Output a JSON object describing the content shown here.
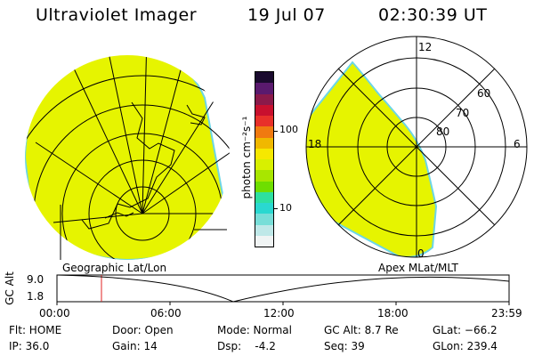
{
  "header": {
    "instrument": "Ultraviolet Imager",
    "date": "19 Jul 07",
    "time": "02:30:39 UT"
  },
  "colorbar": {
    "unit": "photon cm⁻²s⁻¹",
    "tick_100": "100",
    "tick_10": "10",
    "colors": [
      "#1a0a2e",
      "#5a1a6e",
      "#8a1a4a",
      "#c8102e",
      "#e8302a",
      "#f07a10",
      "#f0b800",
      "#f6e800",
      "#d8f000",
      "#a8e600",
      "#6ede00",
      "#2ee0a0",
      "#2ad8d0",
      "#78ded8",
      "#bfe8e8",
      "#f0f4f4"
    ]
  },
  "left_view": {
    "projection_label": "Geographic Lat/Lon"
  },
  "right_view": {
    "projection_label": "Apex  MLat/MLT",
    "mlt_labels": {
      "top": "12",
      "left": "18",
      "right": "6",
      "bottom": "0"
    },
    "mlat_labels": [
      "60",
      "70",
      "80"
    ]
  },
  "altitude_plot": {
    "ylabel": "GC Alt",
    "y_ticks": [
      "9.0",
      "1.8"
    ],
    "x_ticks": [
      "00:00",
      "06:00",
      "12:00",
      "18:00",
      "23:59"
    ]
  },
  "status": {
    "flt": "Flt: HOME",
    "ip": "IP: 36.0",
    "door": "Door: Open",
    "gain": "Gain: 14",
    "mode": "Mode: Normal",
    "dsp": "Dsp:    -4.2",
    "gc_alt": "GC Alt: 8.7 Re",
    "seq": "Seq: 39",
    "glat": "GLat: −66.2",
    "glon": "GLon: 239.4"
  },
  "colors": {
    "aurora_fill": "#e6f400",
    "aurora_edge": "#6cd6e6",
    "marker": "#e02020"
  }
}
